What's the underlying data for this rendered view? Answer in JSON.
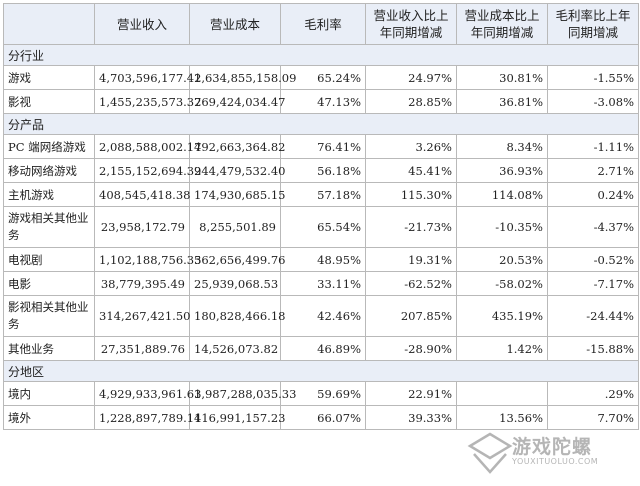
{
  "table": {
    "headers": [
      "",
      "营业收入",
      "营业成本",
      "毛利率",
      "营业收入比上年同期增减",
      "营业成本比上年同期增减",
      "毛利率比上年同期增减"
    ],
    "sections": [
      {
        "title": "分行业",
        "rows": [
          {
            "label": "游戏",
            "cells": [
              "4,703,596,177.42",
              "1,634,855,158.09",
              "65.24%",
              "24.97%",
              "30.81%",
              "-1.55%"
            ]
          },
          {
            "label": "影视",
            "cells": [
              "1,455,235,573.32",
              "769,424,034.47",
              "47.13%",
              "28.85%",
              "36.81%",
              "-3.08%"
            ]
          }
        ]
      },
      {
        "title": "分产品",
        "rows": [
          {
            "label": "PC 端网络游戏",
            "cells": [
              "2,088,588,002.17",
              "492,663,364.82",
              "76.41%",
              "3.26%",
              "8.34%",
              "-1.11%"
            ]
          },
          {
            "label": "移动网络游戏",
            "cells": [
              "2,155,152,694.32",
              "944,479,532.40",
              "56.18%",
              "45.41%",
              "36.93%",
              "2.71%"
            ]
          },
          {
            "label": "主机游戏",
            "cells": [
              "408,545,418.38",
              "174,930,685.15",
              "57.18%",
              "115.30%",
              "114.08%",
              "0.24%"
            ]
          },
          {
            "label": "游戏相关其他业务",
            "cells": [
              "23,958,172.79",
              "8,255,501.89",
              "65.54%",
              "-21.73%",
              "-10.35%",
              "-4.37%"
            ]
          },
          {
            "label": "电视剧",
            "cells": [
              "1,102,188,756.33",
              "562,656,499.76",
              "48.95%",
              "19.31%",
              "20.53%",
              "-0.52%"
            ]
          },
          {
            "label": "电影",
            "cells": [
              "38,779,395.49",
              "25,939,068.53",
              "33.11%",
              "-62.52%",
              "-58.02%",
              "-7.17%"
            ]
          },
          {
            "label": "影视相关其他业务",
            "cells": [
              "314,267,421.50",
              "180,828,466.18",
              "42.46%",
              "207.85%",
              "435.19%",
              "-24.44%"
            ]
          },
          {
            "label": "其他业务",
            "cells": [
              "27,351,889.76",
              "14,526,073.82",
              "46.89%",
              "-28.90%",
              "1.42%",
              "-15.88%"
            ]
          }
        ]
      },
      {
        "title": "分地区",
        "rows": [
          {
            "label": "境内",
            "cells": [
              "4,929,933,961.63",
              "1,987,288,035.33",
              "59.69%",
              "22.91%",
              "",
              ".29%"
            ]
          },
          {
            "label": "境外",
            "cells": [
              "1,228,897,789.11",
              "416,991,157.23",
              "66.07%",
              "39.33%",
              "13.56%",
              "7.70%"
            ]
          }
        ]
      }
    ]
  },
  "watermark": {
    "brand": "游戏陀螺",
    "url": "YOUXITUOLUO.COM",
    "color": "#8a8a8a"
  }
}
